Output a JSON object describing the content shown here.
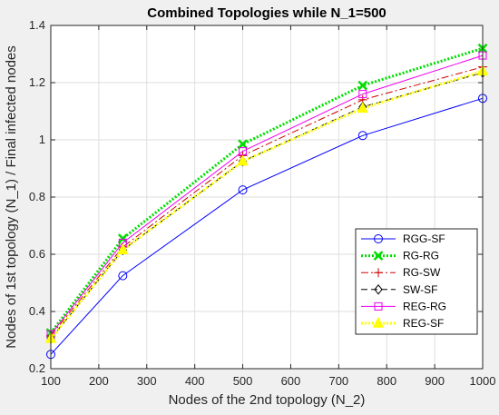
{
  "chart_data": {
    "type": "line",
    "title": "Combined Topologies while N_1=500",
    "xlabel": "Nodes of the 2nd topology (N_2)",
    "ylabel": "Nodes of 1st topology (N_1) / Final infected nodes",
    "xlim": [
      100,
      1000
    ],
    "ylim": [
      0.2,
      1.4
    ],
    "xticks": [
      100,
      200,
      300,
      400,
      500,
      600,
      700,
      800,
      900,
      1000
    ],
    "yticks": [
      0.2,
      0.4,
      0.6,
      0.8,
      1,
      1.2,
      1.4
    ],
    "x": [
      100,
      250,
      500,
      750,
      1000
    ],
    "grid": true,
    "legend_position": "lower-right",
    "series": [
      {
        "name": "RGG-SF",
        "values": [
          0.25,
          0.525,
          0.825,
          1.015,
          1.145
        ],
        "color": "#0000ff",
        "marker": "circle",
        "line_style": "solid"
      },
      {
        "name": "RG-RG",
        "values": [
          0.325,
          0.655,
          0.985,
          1.19,
          1.32
        ],
        "color": "#00dd00",
        "marker": "x",
        "line_style": "dotted"
      },
      {
        "name": "RG-SW",
        "values": [
          0.315,
          0.625,
          0.945,
          1.14,
          1.255
        ],
        "color": "#cc0000",
        "marker": "plus",
        "line_style": "dashdot"
      },
      {
        "name": "SW-SF",
        "values": [
          0.305,
          0.615,
          0.925,
          1.115,
          1.235
        ],
        "color": "#000000",
        "marker": "diamond",
        "line_style": "dashed"
      },
      {
        "name": "REG-RG",
        "values": [
          0.32,
          0.64,
          0.96,
          1.16,
          1.295
        ],
        "color": "#ee00ee",
        "marker": "square",
        "line_style": "solid"
      },
      {
        "name": "REG-SF",
        "values": [
          0.305,
          0.615,
          0.925,
          1.11,
          1.24
        ],
        "color": "#ffff00",
        "marker": "triangle",
        "line_style": "dotted"
      }
    ]
  }
}
